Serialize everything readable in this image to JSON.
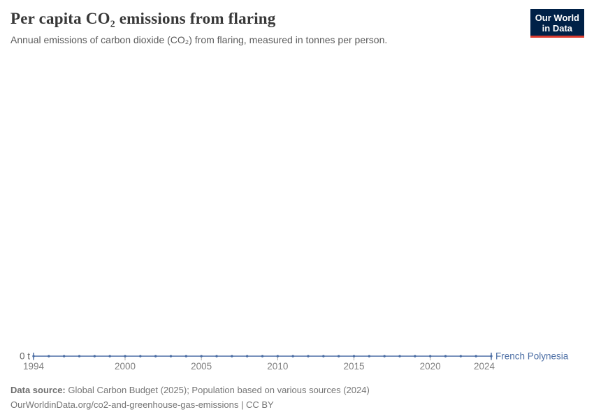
{
  "header": {
    "title": "Per capita CO₂ emissions from flaring",
    "subtitle": "Annual emissions of carbon dioxide (CO₂) from flaring, measured in tonnes per person.",
    "logo": {
      "line1": "Our World",
      "line2": "in Data"
    }
  },
  "chart_data": {
    "type": "line",
    "title": "Per capita CO₂ emissions from flaring",
    "xlabel": "",
    "ylabel": "",
    "xlim": [
      1994,
      2024
    ],
    "x_ticks": [
      1994,
      2000,
      2005,
      2010,
      2015,
      2020,
      2024
    ],
    "y_zero_label": "0 t",
    "grid": false,
    "legend_position": "right-of-line-end",
    "series": [
      {
        "name": "French Polynesia",
        "color": "#4d6fa5",
        "x": [
          1994,
          1995,
          1996,
          1997,
          1998,
          1999,
          2000,
          2001,
          2002,
          2003,
          2004,
          2005,
          2006,
          2007,
          2008,
          2009,
          2010,
          2011,
          2012,
          2013,
          2014,
          2015,
          2016,
          2017,
          2018,
          2019,
          2020,
          2021,
          2022,
          2023,
          2024
        ],
        "values": [
          0,
          0,
          0,
          0,
          0,
          0,
          0,
          0,
          0,
          0,
          0,
          0,
          0,
          0,
          0,
          0,
          0,
          0,
          0,
          0,
          0,
          0,
          0,
          0,
          0,
          0,
          0,
          0,
          0,
          0,
          0
        ]
      }
    ]
  },
  "footer": {
    "data_source_label": "Data source:",
    "data_source_text": " Global Carbon Budget (2025); Population based on various sources (2024)",
    "link_line": "OurWorldinData.org/co2-and-greenhouse-gas-emissions | CC BY"
  },
  "colors": {
    "series_blue": "#4d6fa5",
    "axis_tick": "#a6a6a6",
    "axis_text": "#808080",
    "zero_label_text": "#666666",
    "logo_navy": "#002147",
    "logo_red": "#dc3b2e"
  }
}
